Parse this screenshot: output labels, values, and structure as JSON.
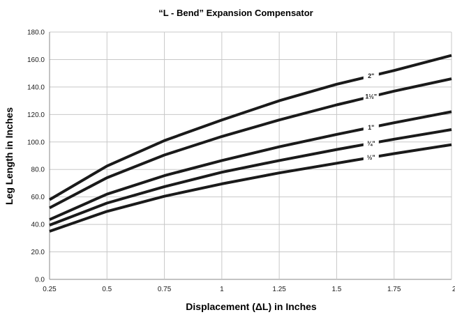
{
  "chart_data": {
    "type": "line",
    "title": "“L - Bend” Expansion Compensator",
    "xlabel": "Displacement (ΔL) in Inches",
    "ylabel": "Leg Length in Inches",
    "x": [
      0.25,
      0.5,
      0.75,
      1,
      1.25,
      1.5,
      1.75,
      2
    ],
    "x_tick_labels": [
      "0.25",
      "0.5",
      "0.75",
      "1",
      "1.25",
      "1.5",
      "1.75",
      "2"
    ],
    "y_tick_labels": [
      "0.0",
      "20.0",
      "40.0",
      "60.0",
      "80.0",
      "100.0",
      "120.0",
      "140.0",
      "160.0",
      "180.0"
    ],
    "xlim": [
      0.25,
      2
    ],
    "ylim": [
      0,
      180
    ],
    "grid": true,
    "series": [
      {
        "name": "2\"",
        "values": [
          58,
          82.5,
          101,
          116,
          130,
          142,
          152,
          163
        ],
        "label_at": 1.65
      },
      {
        "name": "1½\"",
        "values": [
          52,
          74,
          90.5,
          104,
          116,
          127,
          137,
          146
        ],
        "label_at": 1.65
      },
      {
        "name": "1\"",
        "values": [
          43.5,
          62,
          75.5,
          86.5,
          96.5,
          105.5,
          114,
          122
        ],
        "label_at": 1.65
      },
      {
        "name": "¾\"",
        "values": [
          39.5,
          55.5,
          67.5,
          78,
          86.5,
          94.5,
          102,
          109
        ],
        "label_at": 1.65
      },
      {
        "name": "½\"",
        "values": [
          35,
          49.5,
          60.5,
          69.5,
          77.5,
          84.5,
          91.5,
          98
        ],
        "label_at": 1.65
      }
    ],
    "colors": {
      "line": "#1a1a1a",
      "grid": "#c8c8c8",
      "axis": "#888888"
    }
  }
}
